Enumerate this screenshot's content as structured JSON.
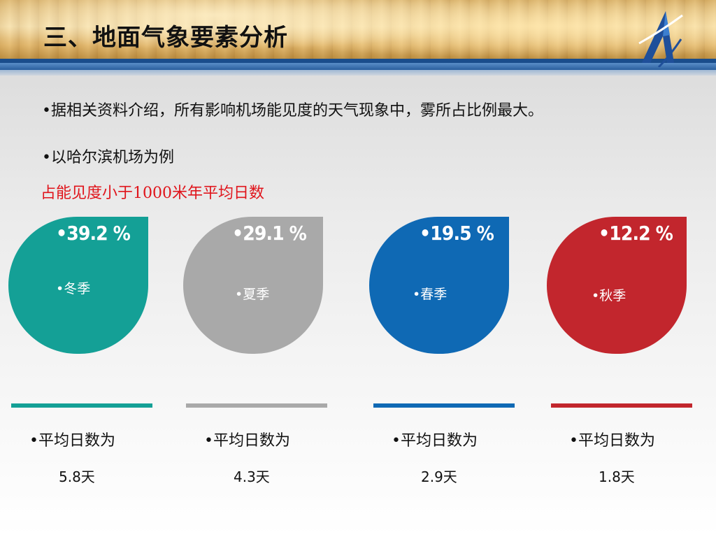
{
  "header": {
    "title": "三、地面气象要素分析",
    "logo_icon": "airline-a-logo-icon"
  },
  "content": {
    "bullet1": "•据相关资料介绍，所有影响机场能见度的天气现象中，雾所占比例最大。",
    "bullet2": "•以哈尔滨机场为例",
    "subtitle": "占能见度小于1000米年平均日数"
  },
  "seasons": [
    {
      "percent": "•39.2 %",
      "season": "•冬季",
      "avg_label": "•平均日数为",
      "avg_value": "5.8天",
      "color": "#14a096"
    },
    {
      "percent": "•29.1 %",
      "season": "•夏季",
      "avg_label": "•平均日数为",
      "avg_value": "4.3天",
      "color": "#a9a9a9"
    },
    {
      "percent": "•19.5 %",
      "season": "•春季",
      "avg_label": "•平均日数为",
      "avg_value": "2.9天",
      "color": "#0f69b4"
    },
    {
      "percent": "•12.2 %",
      "season": "•秋季",
      "avg_label": "•平均日数为",
      "avg_value": "1.8天",
      "color": "#c2262d"
    }
  ]
}
